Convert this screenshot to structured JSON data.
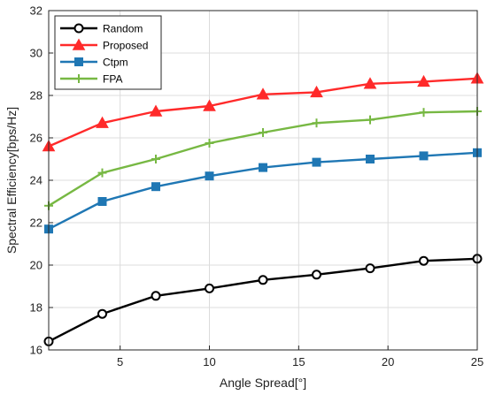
{
  "chart_data": {
    "type": "line",
    "title": "",
    "xlabel": "Angle Spread[°]",
    "ylabel": "Spectral Efficiency[bps/Hz]",
    "xlim": [
      1,
      25
    ],
    "ylim": [
      16,
      32
    ],
    "xticks": [
      5,
      10,
      15,
      20,
      25
    ],
    "yticks": [
      16,
      18,
      20,
      22,
      24,
      26,
      28,
      30,
      32
    ],
    "grid": true,
    "legend_position": "top-left",
    "x": [
      1,
      4,
      7,
      10,
      13,
      16,
      19,
      22,
      25
    ],
    "series": [
      {
        "name": "Random",
        "color": "#000000",
        "marker": "circle",
        "values": [
          16.4,
          17.7,
          18.55,
          18.9,
          19.3,
          19.55,
          19.85,
          20.2,
          20.3
        ]
      },
      {
        "name": "Proposed",
        "color": "#ff2a2a",
        "marker": "triangle",
        "values": [
          25.6,
          26.7,
          27.25,
          27.5,
          28.05,
          28.15,
          28.55,
          28.65,
          28.8
        ]
      },
      {
        "name": "Ctpm",
        "color": "#1f77b4",
        "marker": "square",
        "values": [
          21.7,
          23.0,
          23.7,
          24.2,
          24.6,
          24.85,
          25.0,
          25.15,
          25.3
        ]
      },
      {
        "name": "FPA",
        "color": "#77b843",
        "marker": "plus",
        "values": [
          22.8,
          24.35,
          25.0,
          25.75,
          26.25,
          26.7,
          26.85,
          27.2,
          27.25
        ]
      }
    ]
  }
}
